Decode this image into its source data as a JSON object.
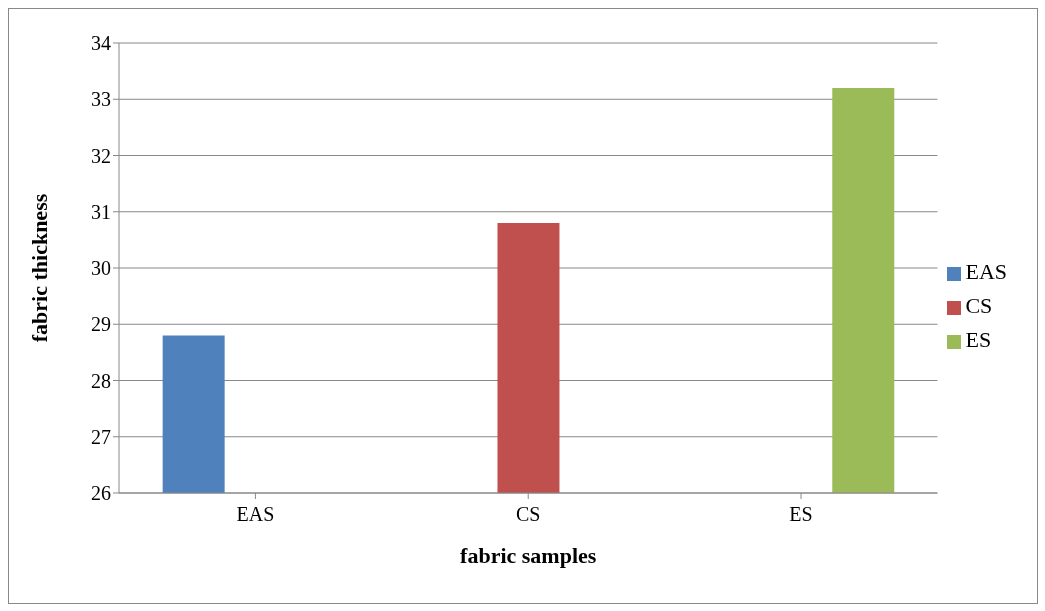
{
  "chart_data": {
    "type": "bar",
    "xlabel": "fabric samples",
    "ylabel": "fabric thickness",
    "categories": [
      "EAS",
      "CS",
      "ES"
    ],
    "series": [
      {
        "name": "EAS",
        "color": "#4f81bd",
        "values": [
          28.8,
          null,
          null
        ]
      },
      {
        "name": "CS",
        "color": "#c0504d",
        "values": [
          null,
          30.8,
          null
        ]
      },
      {
        "name": "ES",
        "color": "#9bbb59",
        "values": [
          null,
          null,
          33.2
        ]
      }
    ],
    "ylim": [
      26,
      34
    ],
    "yticks": [
      26,
      27,
      28,
      29,
      30,
      31,
      32,
      33,
      34
    ],
    "grid": "y",
    "legend": "right"
  }
}
